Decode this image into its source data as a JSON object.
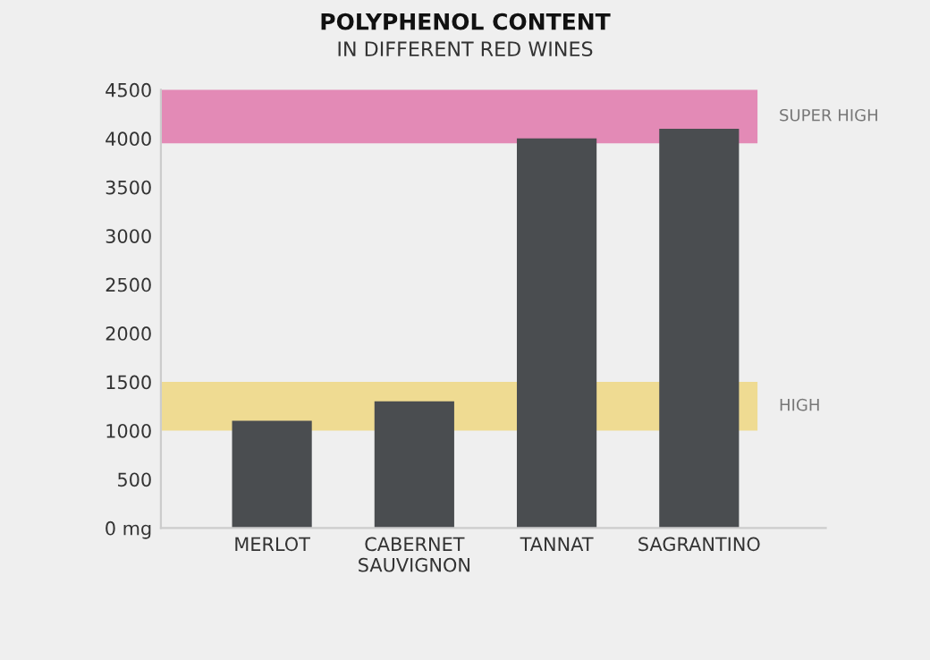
{
  "chart_data": {
    "type": "bar",
    "title": "POLYPHENOL CONTENT",
    "subtitle": "IN DIFFERENT RED WINES",
    "categories": [
      "MERLOT",
      "CABERNET\nSAUVIGNON",
      "TANNAT",
      "SAGRANTINO"
    ],
    "values": [
      1100,
      1300,
      4000,
      4100
    ],
    "color": "#4a4d50",
    "ylim": [
      0,
      4500
    ],
    "yticks": [
      {
        "value": 0,
        "label": "0 mg"
      },
      500,
      1000,
      1500,
      2000,
      2500,
      3000,
      3500,
      4000,
      4500
    ],
    "bands": [
      {
        "axis": "y",
        "from": 3950,
        "to": 4500,
        "label": "SUPER HIGH",
        "color": "#e070a8"
      },
      {
        "axis": "y",
        "from": 1000,
        "to": 1500,
        "label": "HIGH",
        "color": "#efd67a"
      }
    ],
    "grid": false,
    "legend": false
  }
}
